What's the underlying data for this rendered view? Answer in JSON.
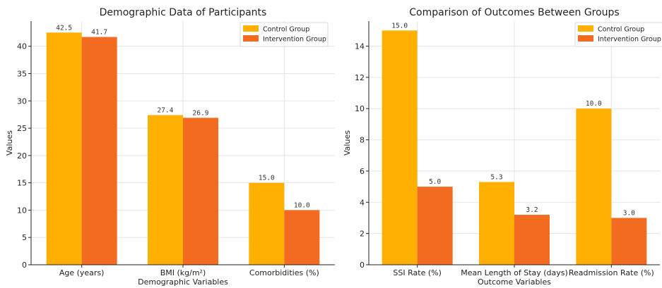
{
  "colors": {
    "control": "#FFB000",
    "intervention": "#F26B21",
    "grid": "#e4e4e4",
    "axis": "#222222"
  },
  "chart_data": [
    {
      "type": "bar",
      "title": "Demographic Data of Participants",
      "xlabel": "Demographic Variables",
      "ylabel": "Values",
      "categories": [
        "Age (years)",
        "BMI (kg/m²)",
        "Comorbidities (%)"
      ],
      "series": [
        {
          "name": "Control Group",
          "values": [
            42.5,
            27.4,
            15.0
          ],
          "labels": [
            "42.5",
            "27.4",
            "15.0"
          ]
        },
        {
          "name": "Intervention Group",
          "values": [
            41.7,
            26.9,
            10.0
          ],
          "labels": [
            "41.7",
            "26.9",
            "10.0"
          ]
        }
      ],
      "ylim": [
        0,
        44.6
      ],
      "yticks": [
        0,
        5,
        10,
        15,
        20,
        25,
        30,
        35,
        40
      ],
      "ytick_labels": [
        "0",
        "5",
        "10",
        "15",
        "20",
        "25",
        "30",
        "35",
        "40"
      ],
      "grid": true,
      "legend": "top-right"
    },
    {
      "type": "bar",
      "title": "Comparison of Outcomes Between Groups",
      "xlabel": "Outcome Variables",
      "ylabel": "Values",
      "categories": [
        "SSI Rate (%)",
        "Mean Length of Stay (days)",
        "Readmission Rate (%)"
      ],
      "series": [
        {
          "name": "Control Group",
          "values": [
            15.0,
            5.3,
            10.0
          ],
          "labels": [
            "15.0",
            "5.3",
            "10.0"
          ]
        },
        {
          "name": "Intervention Group",
          "values": [
            5.0,
            3.2,
            3.0
          ],
          "labels": [
            "5.0",
            "3.2",
            "3.0"
          ]
        }
      ],
      "ylim": [
        0,
        15.6
      ],
      "yticks": [
        0,
        2,
        4,
        6,
        8,
        10,
        12,
        14
      ],
      "ytick_labels": [
        "0",
        "2",
        "4",
        "6",
        "8",
        "10",
        "12",
        "14"
      ],
      "grid": true,
      "legend": "top-right"
    }
  ]
}
